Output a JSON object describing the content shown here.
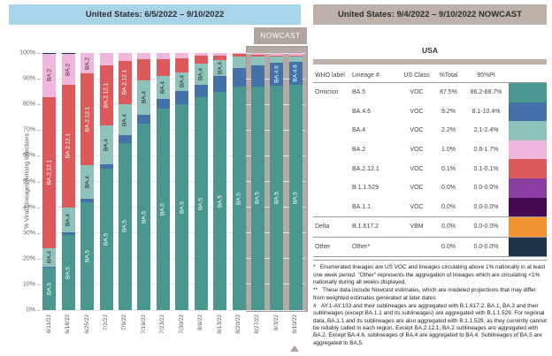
{
  "left_panel": {
    "header": "United States: 6/5/2022 – 9/10/2022",
    "nowcast_label": "NOWCAST",
    "y_axis_title": "% Viral Lineages Among Infections",
    "y_ticks": [
      "0%",
      "10%",
      "20%",
      "30%",
      "40%",
      "50%",
      "60%",
      "70%",
      "80%",
      "90%",
      "100%"
    ]
  },
  "right_panel": {
    "header": "United States: 9/4/2022 – 9/10/2022 NOWCAST",
    "table_title": "USA",
    "columns": [
      "WHO label",
      "Lineage #",
      "US Class",
      "%Total",
      "95%PI"
    ],
    "rows": [
      {
        "who": "Omicron",
        "lineage": "BA.5",
        "us_class": "VOC",
        "total": "87.5%",
        "pi": "86.2-88.7%",
        "color": "#4A9790",
        "group_start": false
      },
      {
        "who": "",
        "lineage": "BA.4.6",
        "us_class": "VOC",
        "total": "9.2%",
        "pi": "8.1-10.4%",
        "color": "#4471A8",
        "group_start": false
      },
      {
        "who": "",
        "lineage": "BA.4",
        "us_class": "VOC",
        "total": "2.2%",
        "pi": "2.1-2.4%",
        "color": "#8FC2BA",
        "group_start": false
      },
      {
        "who": "",
        "lineage": "BA.2",
        "us_class": "VOC",
        "total": "1.0%",
        "pi": "0.6-1.7%",
        "color": "#F1B6DB",
        "group_start": false
      },
      {
        "who": "",
        "lineage": "BA.2.12.1",
        "us_class": "VOC",
        "total": "0.1%",
        "pi": "0.1-0.1%",
        "color": "#DD5A5C",
        "group_start": false
      },
      {
        "who": "",
        "lineage": "B.1.1.529",
        "us_class": "VOC",
        "total": "0.0%",
        "pi": "0.0-0.0%",
        "color": "#8C3FA3",
        "group_start": false
      },
      {
        "who": "",
        "lineage": "BA.1.1",
        "us_class": "VOC",
        "total": "0.0%",
        "pi": "0.0-0.0%",
        "color": "#470B52",
        "group_start": false
      },
      {
        "who": "Delta",
        "lineage": "B.1.617.2",
        "us_class": "VBM",
        "total": "0.0%",
        "pi": "0.0-0.0%",
        "color": "#F19330",
        "group_start": true
      },
      {
        "who": "Other",
        "lineage": "Other*",
        "us_class": "",
        "total": "0.0%",
        "pi": "0.0-0.0%",
        "color": "#1D3349",
        "group_start": true
      }
    ],
    "footnotes": [
      "*   Enumerated lineages are US VOC and lineages circulating above 1% nationally in at least one week period. \"Other\" represents the aggregation of lineages which are circulating <1% nationally during all weeks displayed.",
      "**   These data include Nowcast estimates, which are modeled projections that may differ from weighted estimates generated at later dates",
      "#   AY.1-AY.133 and their sublineages are aggregated with B.1.617.2. BA.1, BA.3 and their sublineages (except BA.1.1 and its sublineages) are aggregated with B.1.1.529. For regional data, BA.1.1 and its sublineages are also aggregated with B.1.1.529, as they currently cannot be reliably called in each region. Except BA.2.12.1, BA.2 sublineages are aggregated with BA.2. Except BA.4.6, sublineages of BA.4 are aggregated to BA.4. Sublineages of BA.5 are aggregated to BA.5."
    ]
  },
  "chart_data": {
    "type": "bar",
    "stacked": true,
    "title": "United States: 6/5/2022 – 9/10/2022",
    "ylabel": "% Viral Lineages Among Infections",
    "ylim": [
      0,
      100
    ],
    "grid": true,
    "legend_position": "none",
    "nowcast_start_index": 11,
    "categories": [
      "6/11/22",
      "6/18/22",
      "6/25/22",
      "7/2/22",
      "7/9/22",
      "7/16/22",
      "7/23/22",
      "7/30/22",
      "8/6/22",
      "8/13/22",
      "8/20/22",
      "8/27/22",
      "9/3/22",
      "9/10/22"
    ],
    "series": [
      {
        "name": "BA.5",
        "color": "#4A9790",
        "label_color": "#ffffff",
        "values": [
          16.5,
          29.2,
          42.0,
          55.0,
          65.0,
          72.5,
          78.5,
          80.0,
          82.8,
          84.8,
          86.8,
          87.0,
          87.3,
          87.5
        ]
      },
      {
        "name": "BA.4.6",
        "color": "#4471A8",
        "label_color": "#ffffff",
        "values": [
          0.5,
          1.0,
          1.2,
          1.7,
          2.9,
          3.6,
          3.6,
          5.3,
          5.0,
          6.4,
          7.3,
          8.2,
          8.8,
          9.2
        ]
      },
      {
        "name": "BA.4",
        "color": "#8FC2BA",
        "label_color": "#222222",
        "values": [
          7.0,
          9.8,
          13.3,
          15.2,
          12.3,
          13.2,
          9.1,
          7.1,
          8.1,
          5.9,
          4.4,
          3.6,
          2.7,
          2.2
        ]
      },
      {
        "name": "BA.2.12.1",
        "color": "#DD5A5C",
        "label_color": "#ffffff",
        "values": [
          59.0,
          47.6,
          35.5,
          23.4,
          16.8,
          8.4,
          6.5,
          5.4,
          3.1,
          2.0,
          1.0,
          0.5,
          0.3,
          0.1
        ]
      },
      {
        "name": "BA.2",
        "color": "#F1B6DB",
        "label_color": "#333333",
        "values": [
          16.7,
          11.9,
          8.0,
          4.7,
          3.0,
          2.3,
          2.3,
          2.2,
          1.0,
          0.9,
          0.5,
          0.7,
          0.9,
          1.0
        ]
      },
      {
        "name": "Other",
        "color": "#1D3349",
        "label_color": "#ffffff",
        "values": [
          0.3,
          0.5,
          0,
          0,
          0,
          0,
          0,
          0,
          0,
          0,
          0,
          0,
          0,
          0
        ]
      }
    ],
    "labels_shown": [
      [
        "BA.5",
        "BA.4",
        "BA.2.12.1",
        "BA.2"
      ],
      [
        "BA.5",
        "BA.4",
        "BA.2.12.1",
        "BA.2"
      ],
      [
        "BA.5",
        "BA.4",
        "BA.2.12.1",
        "BA.2"
      ],
      [
        "BA.5",
        "BA.4",
        "BA.2.12.1"
      ],
      [
        "BA.5",
        "BA.4",
        "BA.2.12.1"
      ],
      [
        "BA.5",
        "BA.4"
      ],
      [
        "BA.5",
        "BA.4"
      ],
      [
        "BA.5",
        "BA.4"
      ],
      [
        "BA.5",
        "BA.4"
      ],
      [
        "BA.5",
        "BA.4"
      ],
      [
        "BA.5"
      ],
      [
        "BA.5"
      ],
      [
        "BA.5",
        "BA.4.6"
      ],
      [
        "BA.5",
        "BA.4.6"
      ]
    ]
  }
}
